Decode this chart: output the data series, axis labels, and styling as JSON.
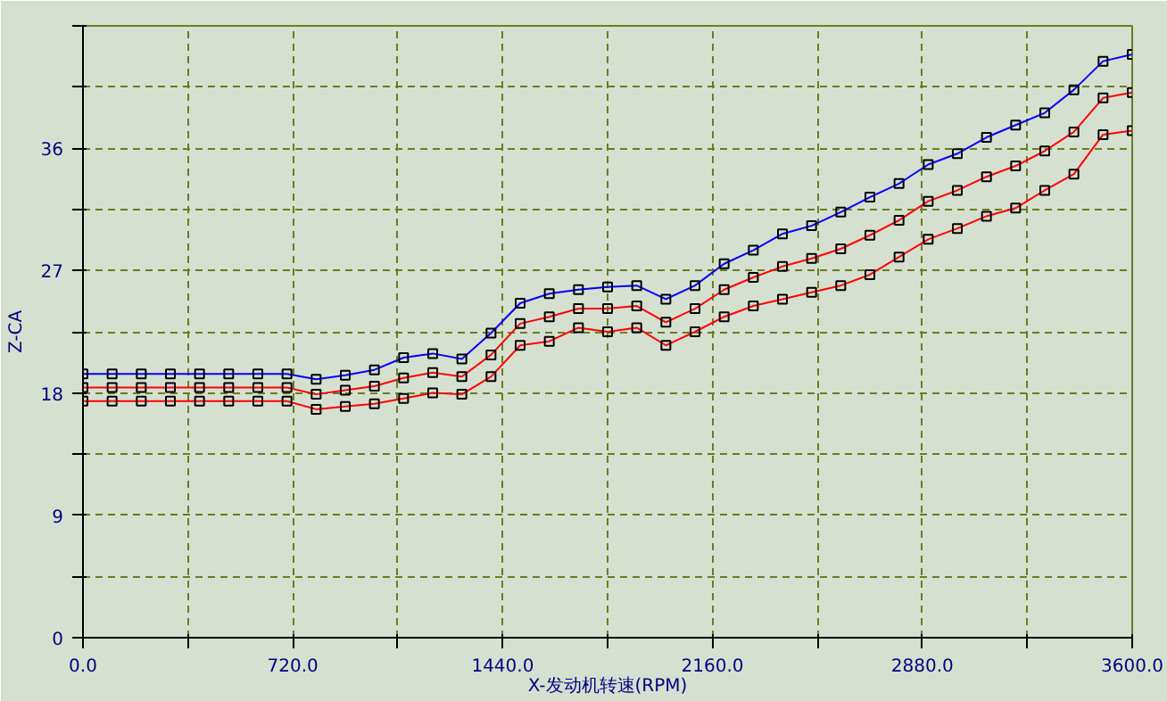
{
  "chart_data": {
    "type": "line",
    "xlabel": "X-发动机转速(RPM)",
    "ylabel": "Z-CA",
    "x": [
      0,
      100,
      200,
      300,
      400,
      500,
      600,
      700,
      800,
      900,
      1000,
      1100,
      1200,
      1300,
      1400,
      1500,
      1600,
      1700,
      1800,
      1900,
      2000,
      2100,
      2200,
      2300,
      2400,
      2500,
      2600,
      2700,
      2800,
      2900,
      3000,
      3100,
      3200,
      3300,
      3400,
      3500,
      3600
    ],
    "series": [
      {
        "color": "#0000ff",
        "values": [
          19.4,
          19.4,
          19.4,
          19.4,
          19.4,
          19.4,
          19.4,
          19.4,
          19.0,
          19.3,
          19.7,
          20.6,
          20.9,
          20.5,
          22.4,
          24.6,
          25.3,
          25.6,
          25.8,
          25.9,
          24.9,
          25.9,
          27.5,
          28.5,
          29.7,
          30.3,
          31.3,
          32.4,
          33.4,
          34.8,
          35.6,
          36.8,
          37.7,
          38.6,
          40.3,
          42.4,
          42.9
        ]
      },
      {
        "color": "#ff0000",
        "values": [
          18.4,
          18.4,
          18.4,
          18.4,
          18.4,
          18.4,
          18.4,
          18.4,
          17.9,
          18.2,
          18.5,
          19.1,
          19.5,
          19.2,
          20.8,
          23.1,
          23.6,
          24.2,
          24.2,
          24.4,
          23.2,
          24.2,
          25.6,
          26.5,
          27.3,
          27.9,
          28.6,
          29.6,
          30.7,
          32.1,
          32.9,
          33.9,
          34.7,
          35.8,
          37.2,
          39.7,
          40.1
        ]
      },
      {
        "color": "#ff0000",
        "values": [
          17.4,
          17.4,
          17.4,
          17.4,
          17.4,
          17.4,
          17.4,
          17.4,
          16.8,
          17.0,
          17.2,
          17.6,
          18.0,
          17.9,
          19.2,
          21.5,
          21.8,
          22.8,
          22.5,
          22.8,
          21.5,
          22.5,
          23.6,
          24.4,
          24.9,
          25.4,
          25.9,
          26.7,
          28.0,
          29.3,
          30.1,
          31.0,
          31.6,
          32.9,
          34.1,
          37.0,
          37.3
        ]
      }
    ],
    "xlim": [
      0,
      3600
    ],
    "ylim": [
      0,
      45
    ],
    "xticks": [
      {
        "value": 0,
        "label": "0.0"
      },
      {
        "value": 360,
        "label": null
      },
      {
        "value": 720,
        "label": "720.0"
      },
      {
        "value": 1080,
        "label": null
      },
      {
        "value": 1440,
        "label": "1440.0"
      },
      {
        "value": 1800,
        "label": null
      },
      {
        "value": 2160,
        "label": "2160.0"
      },
      {
        "value": 2520,
        "label": null
      },
      {
        "value": 2880,
        "label": "2880.0"
      },
      {
        "value": 3240,
        "label": null
      },
      {
        "value": 3600,
        "label": "3600.0"
      }
    ],
    "yticks": [
      0,
      {
        "value": 4.5,
        "label": null
      },
      9,
      {
        "value": 13.5,
        "label": null
      },
      18,
      {
        "value": 22.5,
        "label": null
      },
      27,
      {
        "value": 31.5,
        "label": null
      },
      36,
      {
        "value": 40.5,
        "label": null
      },
      {
        "value": 45,
        "label": null
      }
    ],
    "grid": true,
    "marker": "square",
    "line_style": "solid"
  }
}
